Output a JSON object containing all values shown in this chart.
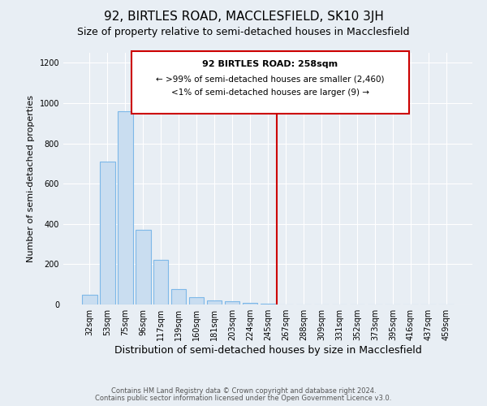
{
  "title": "92, BIRTLES ROAD, MACCLESFIELD, SK10 3JH",
  "subtitle": "Size of property relative to semi-detached houses in Macclesfield",
  "xlabel": "Distribution of semi-detached houses by size in Macclesfield",
  "ylabel": "Number of semi-detached properties",
  "bar_labels": [
    "32sqm",
    "53sqm",
    "75sqm",
    "96sqm",
    "117sqm",
    "139sqm",
    "160sqm",
    "181sqm",
    "203sqm",
    "224sqm",
    "245sqm",
    "267sqm",
    "288sqm",
    "309sqm",
    "331sqm",
    "352sqm",
    "373sqm",
    "395sqm",
    "416sqm",
    "437sqm",
    "459sqm"
  ],
  "bar_heights": [
    50,
    710,
    960,
    370,
    220,
    75,
    35,
    20,
    15,
    10,
    5,
    0,
    0,
    0,
    0,
    0,
    0,
    0,
    0,
    0,
    0
  ],
  "bar_color": "#c9ddf0",
  "bar_edge_color": "#7db8e8",
  "vline_color": "#cc0000",
  "ylim": [
    0,
    1250
  ],
  "yticks": [
    0,
    200,
    400,
    600,
    800,
    1000,
    1200
  ],
  "annotation_title": "92 BIRTLES ROAD: 258sqm",
  "annotation_line1": "← >99% of semi-detached houses are smaller (2,460)",
  "annotation_line2": "<1% of semi-detached houses are larger (9) →",
  "annotation_box_color": "#cc0000",
  "footer_line1": "Contains HM Land Registry data © Crown copyright and database right 2024.",
  "footer_line2": "Contains public sector information licensed under the Open Government Licence v3.0.",
  "title_fontsize": 11,
  "subtitle_fontsize": 9,
  "ylabel_fontsize": 8,
  "xlabel_fontsize": 9,
  "annotation_title_fontsize": 8,
  "annotation_text_fontsize": 7.5,
  "tick_fontsize": 7,
  "bg_color": "#e8eef4",
  "grid_color": "#ffffff",
  "footer_color": "#555555",
  "footer_fontsize": 6
}
